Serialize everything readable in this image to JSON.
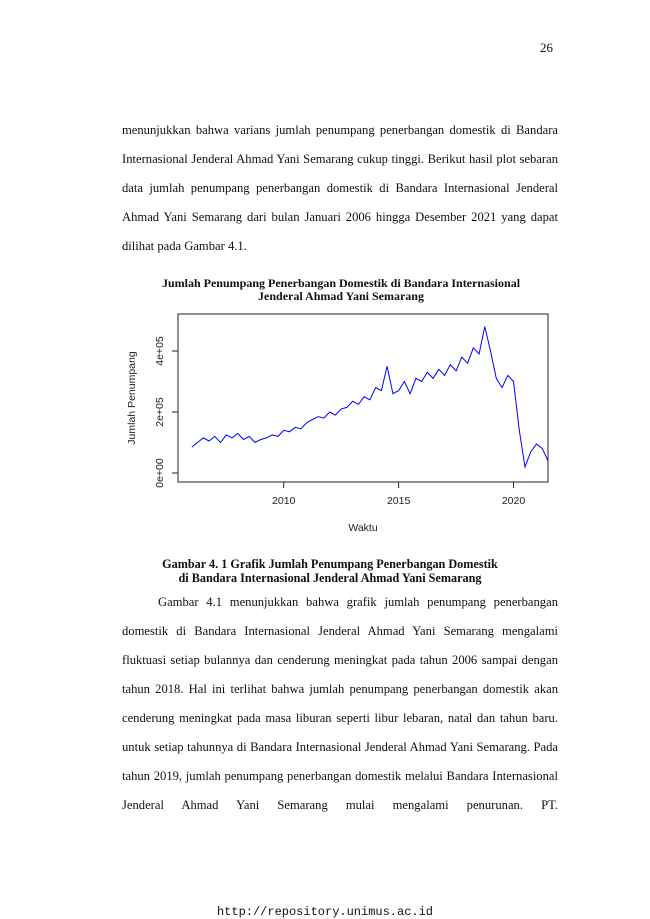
{
  "page_number": "26",
  "paragraph_1": "menunjukkan bahwa varians jumlah penumpang penerbangan domestik di Bandara Internasional Jenderal Ahmad Yani Semarang cukup tinggi. Berikut hasil plot sebaran data jumlah penumpang penerbangan domestik di Bandara Internasional Jenderal Ahmad Yani Semarang dari bulan Januari 2006 hingga Desember 2021 yang dapat dilihat pada Gambar 4.1.",
  "chart_data": {
    "type": "line",
    "title": [
      "Jumlah Penumpang Penerbangan Domestik di Bandara Internasional",
      "Jenderal Ahmad Yani Semarang"
    ],
    "x_label": "Waktu",
    "y_label": "Jumlah Penumpang",
    "color": "#0000ff",
    "x": [
      2006,
      2006.25,
      2006.5,
      2006.75,
      2007,
      2007.25,
      2007.5,
      2007.75,
      2008,
      2008.25,
      2008.5,
      2008.75,
      2009,
      2009.25,
      2009.5,
      2009.75,
      2010,
      2010.25,
      2010.5,
      2010.75,
      2011,
      2011.25,
      2011.5,
      2011.75,
      2012,
      2012.25,
      2012.5,
      2012.75,
      2013,
      2013.25,
      2013.5,
      2013.75,
      2014,
      2014.25,
      2014.5,
      2014.75,
      2015,
      2015.25,
      2015.5,
      2015.75,
      2016,
      2016.25,
      2016.5,
      2016.75,
      2017,
      2017.25,
      2017.5,
      2017.75,
      2018,
      2018.25,
      2018.5,
      2018.75,
      2019,
      2019.25,
      2019.5,
      2019.75,
      2020,
      2020.25,
      2020.5,
      2020.75,
      2021,
      2021.25,
      2021.5
    ],
    "values": [
      85000,
      100000,
      115000,
      105000,
      120000,
      100000,
      125000,
      115000,
      130000,
      110000,
      120000,
      100000,
      110000,
      115000,
      125000,
      120000,
      140000,
      135000,
      150000,
      145000,
      165000,
      175000,
      185000,
      180000,
      200000,
      190000,
      210000,
      215000,
      235000,
      225000,
      250000,
      240000,
      280000,
      270000,
      350000,
      260000,
      270000,
      300000,
      260000,
      310000,
      300000,
      330000,
      310000,
      340000,
      320000,
      355000,
      335000,
      380000,
      360000,
      410000,
      390000,
      480000,
      400000,
      310000,
      280000,
      320000,
      300000,
      140000,
      20000,
      70000,
      95000,
      80000,
      40000
    ],
    "xlim": [
      2005.4,
      2021.5
    ],
    "ylim": [
      -29500,
      521300
    ],
    "xticks": [
      2010,
      2015,
      2020
    ],
    "yticks": [
      {
        "value": 0,
        "label": "0e+00"
      },
      {
        "value": 200000,
        "label": "2e+05"
      },
      {
        "value": 400000,
        "label": "4e+05"
      }
    ]
  },
  "caption": [
    "Gambar 4. 1 Grafik Jumlah Penumpang Penerbangan Domestik",
    "di Bandara Internasional Jenderal Ahmad Yani Semarang"
  ],
  "paragraph_2": "Gambar 4.1 menunjukkan bahwa grafik jumlah penumpang penerbangan domestik di Bandara Internasional Jenderal Ahmad Yani Semarang mengalami fluktuasi setiap bulannya dan cenderung meningkat pada tahun 2006 sampai dengan tahun 2018. Hal ini terlihat bahwa jumlah penumpang penerbangan domestik akan cenderung meningkat pada masa liburan seperti libur lebaran, natal dan tahun baru. untuk setiap tahunnya di Bandara Internasional Jenderal Ahmad Yani Semarang. Pada tahun 2019, jumlah penumpang penerbangan domestik melalui Bandara Internasional Jenderal Ahmad Yani Semarang mulai mengalami penurunan. PT.",
  "footer": "http://repository.unimus.ac.id"
}
